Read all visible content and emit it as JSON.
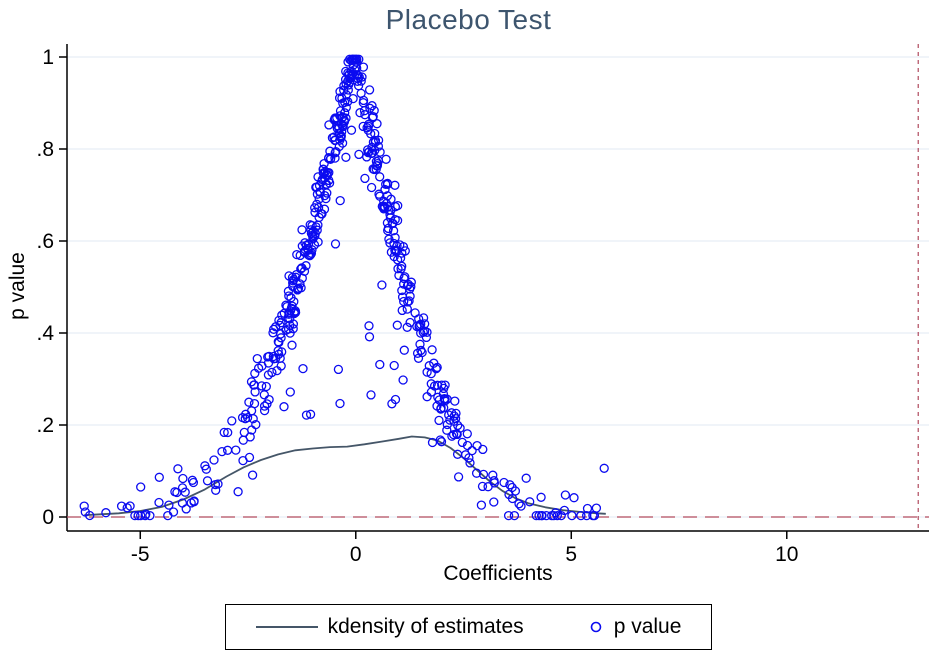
{
  "chart_data": {
    "type": "scatter",
    "title": "Placebo Test",
    "xlabel": "Coefficients",
    "ylabel": "p value",
    "xlim": [
      -6.7,
      13.3
    ],
    "ylim": [
      0,
      1
    ],
    "x_ticks": [
      -5,
      0,
      5,
      10
    ],
    "x_tick_labels": [
      "-5",
      "0",
      "5",
      "10"
    ],
    "y_ticks": [
      0,
      0.2,
      0.4,
      0.6,
      0.8,
      1
    ],
    "y_tick_labels": [
      "0",
      ".2",
      ".4",
      ".6",
      ".8",
      "1"
    ],
    "grid": true,
    "colors": {
      "scatter": "#0b0bf0",
      "kdensity": "#455668",
      "reference": "#b04a5e",
      "grid": "#e2eaf3",
      "axis": "#000000",
      "title": "#3d556e"
    },
    "reference_lines": {
      "horizontal": {
        "y": 0,
        "style": "long-dash"
      },
      "vertical": {
        "x": 13.05,
        "style": "short-dash"
      }
    },
    "series": [
      {
        "name": "p value",
        "type": "scatter",
        "marker": "open-circle",
        "generator": {
          "seed": 11,
          "n": 560,
          "x_mean": -0.15,
          "x_sd": 1.65,
          "left_tail": {
            "prob": 0.05,
            "min": -6.3,
            "max": -3.6
          },
          "right_tail": {
            "prob": 0.04,
            "min": 3.6,
            "max": 5.8
          },
          "sigma_left": 2.05,
          "sigma_right": 1.75,
          "noise_sd": 0.035,
          "interior_prob": 0.08,
          "model": "p = 2*(1-Phi(|x|/sigma)) + noise, p in [0,1]"
        }
      },
      {
        "name": "kdensity of estimates",
        "type": "line",
        "points": [
          [
            -6.3,
            0.004
          ],
          [
            -5.5,
            0.008
          ],
          [
            -5,
            0.013
          ],
          [
            -4.5,
            0.022
          ],
          [
            -4,
            0.038
          ],
          [
            -3.5,
            0.06
          ],
          [
            -3,
            0.088
          ],
          [
            -2.6,
            0.108
          ],
          [
            -2.2,
            0.124
          ],
          [
            -1.8,
            0.136
          ],
          [
            -1.4,
            0.145
          ],
          [
            -1,
            0.149
          ],
          [
            -0.6,
            0.152
          ],
          [
            -0.2,
            0.153
          ],
          [
            0.2,
            0.158
          ],
          [
            0.6,
            0.164
          ],
          [
            1,
            0.17
          ],
          [
            1.3,
            0.175
          ],
          [
            1.6,
            0.173
          ],
          [
            1.9,
            0.166
          ],
          [
            2.2,
            0.15
          ],
          [
            2.5,
            0.128
          ],
          [
            2.8,
            0.103
          ],
          [
            3.1,
            0.078
          ],
          [
            3.4,
            0.057
          ],
          [
            3.7,
            0.041
          ],
          [
            4,
            0.03
          ],
          [
            4.4,
            0.021
          ],
          [
            4.8,
            0.015
          ],
          [
            5.2,
            0.011
          ],
          [
            5.6,
            0.008
          ],
          [
            5.8,
            0.007
          ]
        ]
      }
    ],
    "legend": [
      {
        "label": "kdensity of estimates",
        "marker": "line"
      },
      {
        "label": "p value",
        "marker": "open-circle"
      }
    ]
  }
}
